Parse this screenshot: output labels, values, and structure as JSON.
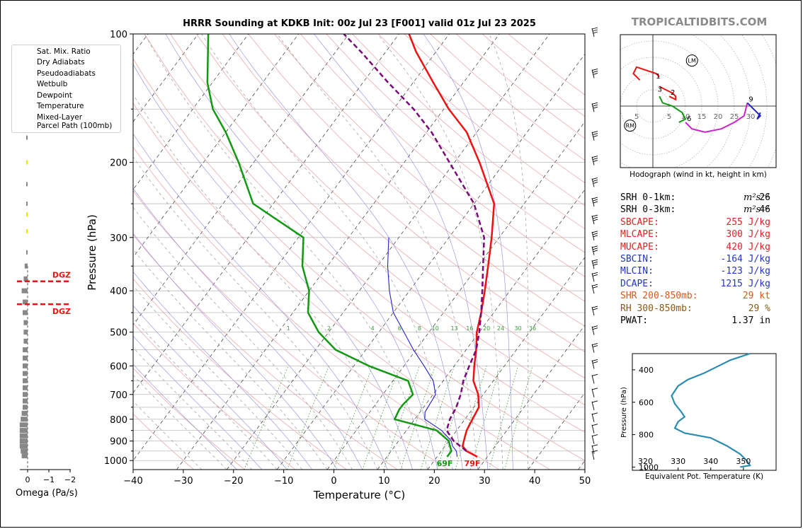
{
  "title": "HRRR Sounding at KDKB Init: 00z Jul 23 [F001] valid 01z Jul 23 2025",
  "brand": "TROPICALTIDBITS.COM",
  "legend": [
    {
      "label": "Sat. Mix. Ratio",
      "color": "#3a9a3a",
      "style": "dotted"
    },
    {
      "label": "Dry Adiabats",
      "color": "#e08a8a",
      "style": "solid"
    },
    {
      "label": "Pseudoadiabats",
      "color": "#888888",
      "style": "dashed"
    },
    {
      "label": "Wetbulb",
      "color": "#2222cc",
      "style": "solid"
    },
    {
      "label": "Dewpoint",
      "color": "#119911",
      "style": "solid"
    },
    {
      "label": "Temperature",
      "color": "#ee1111",
      "style": "solid"
    },
    {
      "label": "Mixed-Layer\nParcel Path (100mb)",
      "color": "#7a0a7a",
      "style": "dashed"
    }
  ],
  "chart_data": [
    {
      "type": "skewt",
      "title": "HRRR Sounding at KDKB Init: 00z Jul 23 [F001] valid 01z Jul 23 2025",
      "xlabel": "Temperature (°C)",
      "ylabel": "Pressure (hPa)",
      "xlim": [
        -40,
        50
      ],
      "ylim": [
        1050,
        100
      ],
      "x_ticks": [
        "−40",
        "−30",
        "−20",
        "−10",
        "0",
        "10",
        "20",
        "30",
        "40",
        "50"
      ],
      "y_ticks": [
        100,
        200,
        300,
        400,
        500,
        600,
        700,
        800,
        900,
        1000
      ],
      "mix_ratio_labels": [
        "1",
        "2",
        "4",
        "6",
        "8",
        "10",
        "13",
        "16",
        "20",
        "24",
        "30",
        "36"
      ],
      "surface_labels": {
        "dewpoint": "69F",
        "temperature": "79F"
      },
      "series": [
        {
          "name": "Temperature",
          "color": "#ee1111",
          "points": [
            [
              28,
              980
            ],
            [
              25,
              950
            ],
            [
              23.5,
              925
            ],
            [
              23,
              900
            ],
            [
              22,
              850
            ],
            [
              21.5,
              800
            ],
            [
              21,
              750
            ],
            [
              19,
              700
            ],
            [
              16,
              650
            ],
            [
              14,
              600
            ],
            [
              12,
              550
            ],
            [
              9.5,
              500
            ],
            [
              7.5,
              450
            ],
            [
              5,
              400
            ],
            [
              2,
              350
            ],
            [
              -1.5,
              300
            ],
            [
              -6,
              250
            ],
            [
              -15,
              200
            ],
            [
              -22,
              170
            ],
            [
              -29,
              150
            ],
            [
              -36,
              130
            ],
            [
              -44,
              110
            ],
            [
              -48,
              100
            ]
          ]
        },
        {
          "name": "Dewpoint",
          "color": "#119911",
          "points": [
            [
              22,
              980
            ],
            [
              22,
              950
            ],
            [
              21,
              925
            ],
            [
              20,
              900
            ],
            [
              16,
              850
            ],
            [
              6,
              800
            ],
            [
              5.5,
              760
            ],
            [
              5.5,
              740
            ],
            [
              6,
              700
            ],
            [
              3,
              650
            ],
            [
              -7,
              600
            ],
            [
              -16,
              550
            ],
            [
              -22,
              500
            ],
            [
              -27,
              450
            ],
            [
              -30,
              400
            ],
            [
              -35,
              350
            ],
            [
              -39,
              300
            ],
            [
              -54,
              250
            ],
            [
              -63,
              200
            ],
            [
              -70,
              170
            ],
            [
              -76,
              150
            ],
            [
              -81,
              130
            ],
            [
              -88,
              100
            ]
          ]
        },
        {
          "name": "Wetbulb",
          "color": "#2222cc",
          "points": [
            [
              24,
              980
            ],
            [
              23,
              950
            ],
            [
              21.5,
              925
            ],
            [
              20.5,
              900
            ],
            [
              17,
              850
            ],
            [
              12,
              800
            ],
            [
              11,
              770
            ],
            [
              10.5,
              700
            ],
            [
              8,
              650
            ],
            [
              4,
              600
            ],
            [
              -0.5,
              550
            ],
            [
              -5,
              500
            ],
            [
              -10,
              450
            ],
            [
              -14,
              400
            ],
            [
              -18,
              350
            ],
            [
              -22,
              300
            ]
          ]
        },
        {
          "name": "Mixed-Layer Parcel Path (100mb)",
          "color": "#7a0a7a",
          "points": [
            [
              25,
              950
            ],
            [
              21,
              900
            ],
            [
              18,
              850
            ],
            [
              17,
              800
            ],
            [
              16.5,
              750
            ],
            [
              15.5,
              700
            ],
            [
              14,
              650
            ],
            [
              13,
              600
            ],
            [
              12,
              550
            ],
            [
              10,
              500
            ],
            [
              7.5,
              450
            ],
            [
              4.5,
              400
            ],
            [
              1,
              350
            ],
            [
              -3,
              300
            ],
            [
              -10,
              250
            ],
            [
              -21,
              200
            ],
            [
              -29,
              170
            ],
            [
              -36,
              150
            ],
            [
              -45,
              130
            ],
            [
              -55,
              110
            ],
            [
              -61,
              100
            ]
          ]
        }
      ],
      "wind_barb_levels": [
        980,
        950,
        900,
        850,
        800,
        750,
        700,
        650,
        600,
        550,
        500,
        450,
        400,
        375,
        350,
        325,
        300,
        275,
        250,
        225,
        200,
        175,
        150,
        125,
        100
      ],
      "layer_markers": [
        {
          "label": "DGZ",
          "pressure": 380,
          "color": "#ee1111"
        },
        {
          "label": "DGZ",
          "pressure": 430,
          "color": "#ee1111"
        }
      ]
    },
    {
      "type": "bar",
      "name": "omega",
      "xlabel": "Omega (Pa/s)",
      "x_ticks": [
        "0",
        "−1",
        "−2"
      ],
      "xlim": [
        0.3,
        -2.3
      ],
      "note_levels": "bars at pressure levels",
      "bars": [
        {
          "p": 975,
          "v": 0.6
        },
        {
          "p": 950,
          "v": 0.7
        },
        {
          "p": 925,
          "v": 0.8
        },
        {
          "p": 900,
          "v": 0.8
        },
        {
          "p": 875,
          "v": 0.8
        },
        {
          "p": 850,
          "v": 0.8
        },
        {
          "p": 825,
          "v": 0.8
        },
        {
          "p": 800,
          "v": 0.7
        },
        {
          "p": 775,
          "v": 0.6
        },
        {
          "p": 750,
          "v": 0.5
        },
        {
          "p": 725,
          "v": 0.5
        },
        {
          "p": 700,
          "v": 0.5
        },
        {
          "p": 675,
          "v": 0.5
        },
        {
          "p": 650,
          "v": 0.5
        },
        {
          "p": 625,
          "v": 0.5
        },
        {
          "p": 600,
          "v": 0.5
        },
        {
          "p": 575,
          "v": 0.5
        },
        {
          "p": 550,
          "v": 0.5
        },
        {
          "p": 525,
          "v": 0.4
        },
        {
          "p": 500,
          "v": 0.4
        },
        {
          "p": 475,
          "v": 0.4
        },
        {
          "p": 450,
          "v": 0.5
        },
        {
          "p": 425,
          "v": 0.5
        },
        {
          "p": 400,
          "v": 0.6
        },
        {
          "p": 375,
          "v": 0.4
        },
        {
          "p": 350,
          "v": 0.3
        }
      ],
      "small_marks": [
        {
          "p": 325,
          "color": "#888888"
        },
        {
          "p": 290,
          "color": "#e8e800"
        },
        {
          "p": 265,
          "color": "#e8e800"
        },
        {
          "p": 250,
          "color": "#888888"
        },
        {
          "p": 225,
          "color": "#888888"
        },
        {
          "p": 200,
          "color": "#e8e800"
        },
        {
          "p": 175,
          "color": "#888888"
        }
      ]
    },
    {
      "type": "line",
      "name": "hodograph",
      "caption": "Hodograph (wind in kt, height in km)",
      "ring_labels": [
        "5",
        "5",
        "10",
        "15",
        "20",
        "25",
        "30"
      ],
      "markers": [
        "LM",
        "RM"
      ],
      "height_labels": [
        "1",
        "2",
        "3",
        "6",
        "9"
      ],
      "segments": [
        {
          "color": "#ee1111",
          "points": [
            [
              -4,
              8
            ],
            [
              -6,
              10
            ],
            [
              -5,
              12
            ],
            [
              1,
              10
            ],
            [
              2,
              9
            ]
          ]
        },
        {
          "color": "#ee1111",
          "points": [
            [
              2,
              6
            ],
            [
              4,
              5
            ],
            [
              6,
              4
            ],
            [
              7,
              3
            ],
            [
              7,
              2
            ],
            [
              5,
              3
            ]
          ]
        },
        {
          "color": "#119911",
          "points": [
            [
              2,
              3
            ],
            [
              3,
              1
            ],
            [
              6,
              0
            ],
            [
              9,
              -2
            ],
            [
              10,
              -4
            ],
            [
              8,
              -5
            ]
          ]
        },
        {
          "color": "#cc22cc",
          "points": [
            [
              10,
              -5
            ],
            [
              12,
              -7
            ],
            [
              16,
              -8
            ],
            [
              21,
              -7
            ],
            [
              25,
              -5
            ],
            [
              28,
              -3
            ],
            [
              29,
              1
            ]
          ]
        },
        {
          "color": "#2222cc",
          "points": [
            [
              29,
              1
            ],
            [
              31,
              -1
            ],
            [
              33,
              -3
            ],
            [
              32,
              -4
            ],
            [
              33,
              -2
            ]
          ]
        }
      ],
      "rm": [
        -7,
        -6
      ],
      "lm": [
        12,
        14
      ]
    },
    {
      "type": "line",
      "name": "theta-e",
      "xlabel": "Equivalent Pot. Temperature (K)",
      "ylabel": "Pressure (hPa)",
      "x_ticks": [
        "320",
        "330",
        "340",
        "350"
      ],
      "y_ticks": [
        "400",
        "600",
        "800",
        "1000"
      ],
      "xlim": [
        316,
        360
      ],
      "ylim": [
        1020,
        300
      ],
      "color": "#2a8cb0",
      "points": [
        [
          352,
          300
        ],
        [
          346,
          340
        ],
        [
          342,
          380
        ],
        [
          338,
          420
        ],
        [
          333,
          460
        ],
        [
          330,
          500
        ],
        [
          328,
          560
        ],
        [
          329,
          610
        ],
        [
          331,
          660
        ],
        [
          332,
          690
        ],
        [
          330,
          720
        ],
        [
          329,
          760
        ],
        [
          332,
          790
        ],
        [
          340,
          820
        ],
        [
          345,
          870
        ],
        [
          349,
          920
        ],
        [
          351,
          960
        ],
        [
          352,
          990
        ],
        [
          349,
          1000
        ]
      ]
    }
  ],
  "stats": [
    {
      "label": "SRH 0-1km:",
      "value": "26",
      "unit": "m²s⁻²",
      "color": "#000000"
    },
    {
      "label": "SRH 0-3km:",
      "value": "46",
      "unit": "m²s⁻²",
      "color": "#000000"
    },
    {
      "label": "SBCAPE:",
      "value": "255 J/kg",
      "unit": "",
      "color": "#dd2222"
    },
    {
      "label": "MLCAPE:",
      "value": "300 J/kg",
      "unit": "",
      "color": "#dd2222"
    },
    {
      "label": "MUCAPE:",
      "value": "420 J/kg",
      "unit": "",
      "color": "#dd2222"
    },
    {
      "label": "SBCIN:",
      "value": "-164 J/kg",
      "unit": "",
      "color": "#2233cc"
    },
    {
      "label": "MLCIN:",
      "value": "-123 J/kg",
      "unit": "",
      "color": "#2233cc"
    },
    {
      "label": "DCAPE:",
      "value": "1215 J/kg",
      "unit": "",
      "color": "#2233cc"
    },
    {
      "label": "SHR 200-850mb:",
      "value": "29 kt",
      "unit": "",
      "color": "#d05a20"
    },
    {
      "label": "RH 300-850mb:",
      "value": "29 %",
      "unit": "",
      "color": "#8a5a10"
    },
    {
      "label": "PWAT:",
      "value": "1.37 in",
      "unit": "",
      "color": "#000000"
    }
  ]
}
